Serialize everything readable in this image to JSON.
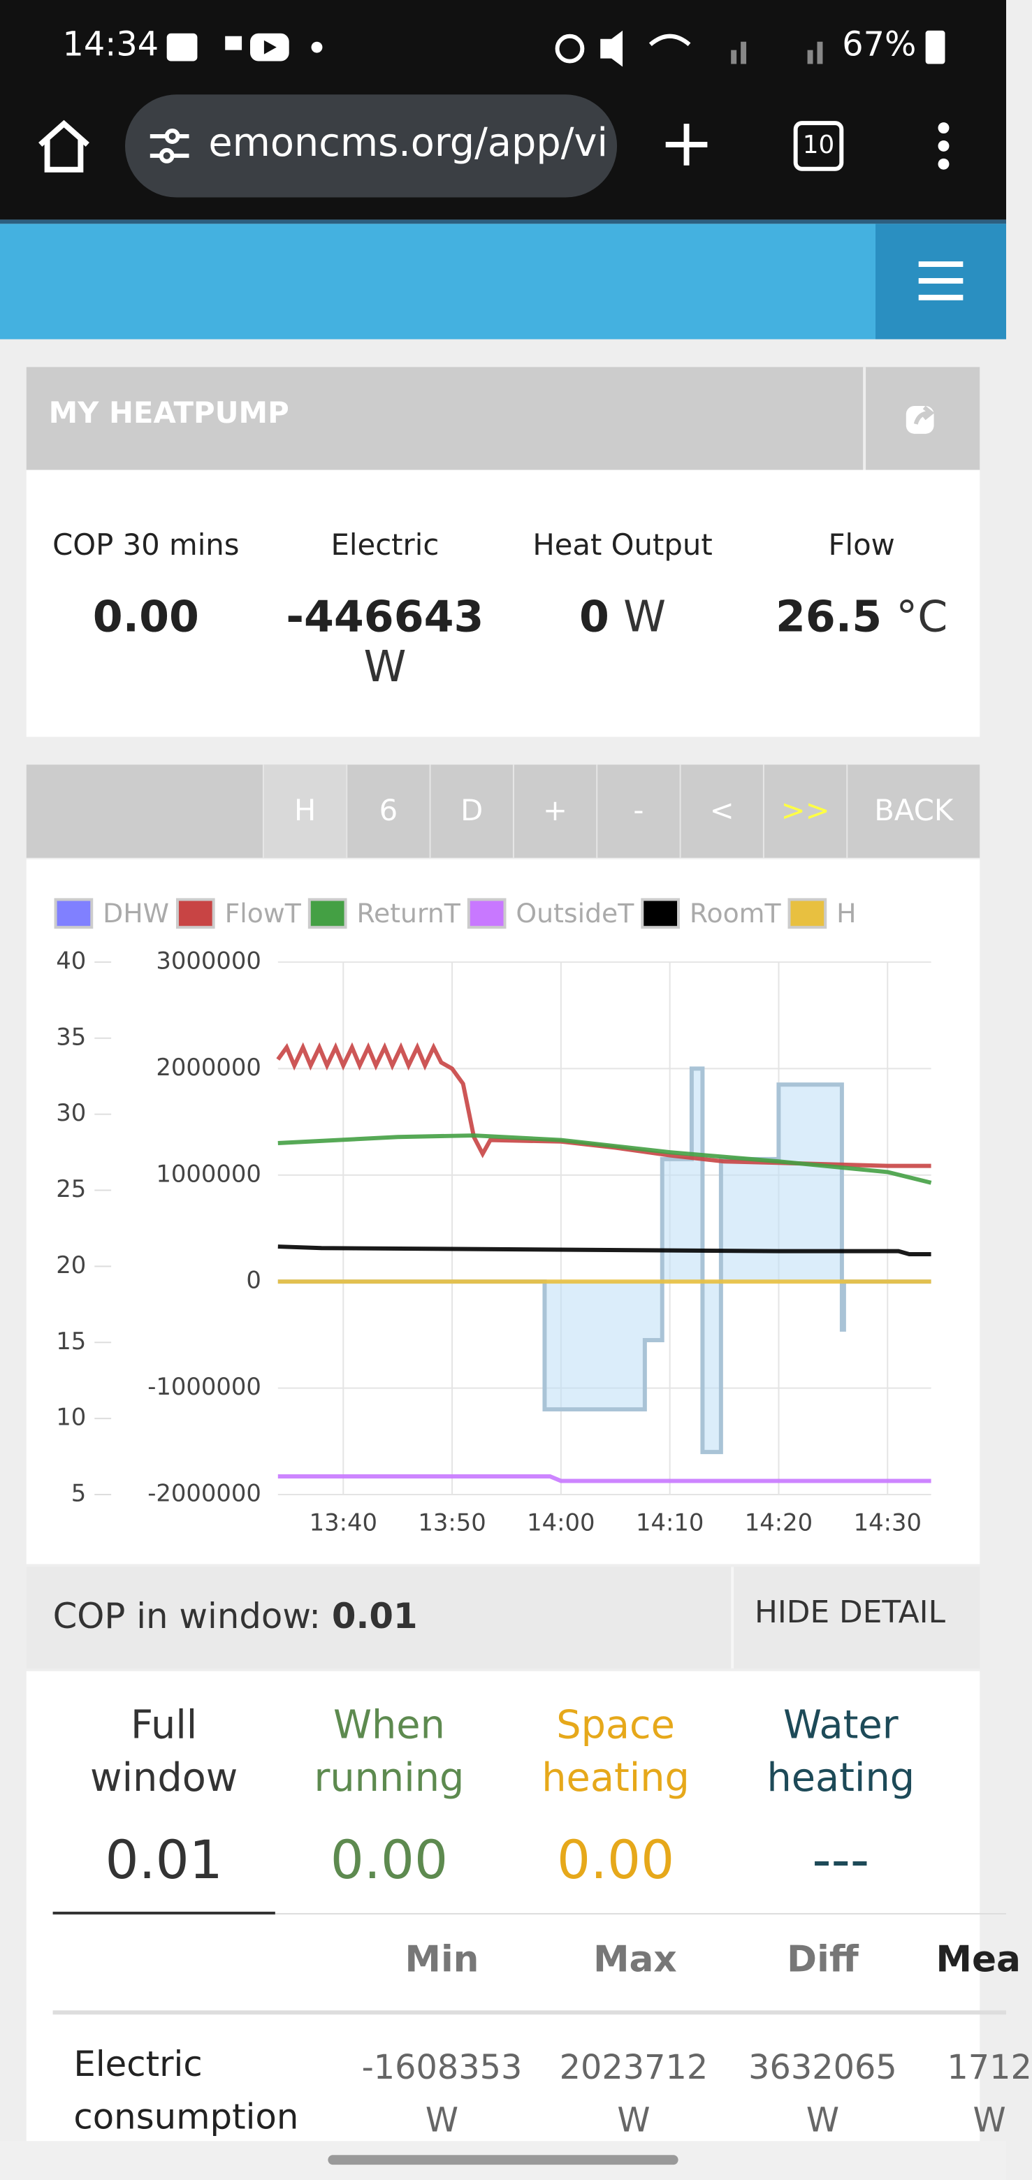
{
  "status_bar": {
    "time": "14:34",
    "battery": "67%"
  },
  "browser": {
    "url": "emoncms.org/app/vi",
    "tab_count": "10"
  },
  "app": {
    "title": "MY HEATPUMP"
  },
  "stats": [
    {
      "label": "COP 30 mins",
      "value": "0.00"
    },
    {
      "label": "Electric",
      "value": "-446643",
      "unit": "W"
    },
    {
      "label": "Heat Output",
      "value": "0",
      "unit": "W"
    },
    {
      "label": "Flow",
      "value": "26.5",
      "unit": "°C"
    }
  ],
  "buttons": [
    "H",
    "6",
    "D",
    "+",
    "-",
    "<",
    ">>",
    "BACK"
  ],
  "chart_data": {
    "type": "line",
    "xlim": [
      814,
      874
    ],
    "xticks": [
      {
        "value": 820,
        "label": "13:40"
      },
      {
        "value": 830,
        "label": "13:50"
      },
      {
        "value": 840,
        "label": "14:00"
      },
      {
        "value": 850,
        "label": "14:10"
      },
      {
        "value": 860,
        "label": "14:20"
      },
      {
        "value": 870,
        "label": "14:30"
      }
    ],
    "ylim": [
      5,
      40
    ],
    "yticks": [
      5,
      10,
      15,
      20,
      25,
      30,
      35,
      40
    ],
    "y2lim": [
      -2000000,
      3000000
    ],
    "y2ticks": [
      -2000000,
      -1000000,
      0,
      1000000,
      2000000,
      3000000
    ],
    "grid": true,
    "legend": "top",
    "series": [
      {
        "name": "DHW",
        "color": "#8080ff",
        "x": [],
        "values": []
      },
      {
        "name": "FlowT",
        "color": "#c84444",
        "x": [
          814,
          814.8,
          815.5,
          816.3,
          817,
          817.8,
          818.5,
          819.3,
          820,
          820.8,
          821.5,
          822.3,
          823,
          823.8,
          824.5,
          825.3,
          826,
          826.8,
          827.5,
          828.3,
          829,
          830,
          831,
          832,
          832.8,
          833.5,
          840,
          845,
          850,
          855,
          860,
          865,
          870,
          874
        ],
        "values": [
          33.6,
          34.4,
          33.2,
          34.4,
          33.2,
          34.4,
          33.2,
          34.4,
          33.2,
          34.4,
          33.2,
          34.4,
          33.2,
          34.4,
          33.2,
          34.4,
          33.2,
          34.4,
          33.2,
          34.4,
          33.4,
          33.0,
          32.0,
          28.5,
          27.4,
          28.3,
          28.2,
          27.8,
          27.3,
          26.9,
          26.8,
          26.7,
          26.6,
          26.6
        ]
      },
      {
        "name": "ReturnT",
        "color": "#44a044",
        "x": [
          814,
          825,
          832,
          840,
          850,
          860,
          870,
          874
        ],
        "values": [
          28.1,
          28.5,
          28.6,
          28.3,
          27.5,
          26.9,
          26.2,
          25.5
        ]
      },
      {
        "name": "OutsideT",
        "color": "#c878ff",
        "x": [
          814,
          839,
          840,
          874
        ],
        "values": [
          6.2,
          6.2,
          5.9,
          5.9
        ]
      },
      {
        "name": "RoomT",
        "color": "#000000",
        "x": [
          814,
          818,
          860,
          871,
          872,
          874
        ],
        "values": [
          21.3,
          21.2,
          21.0,
          21.0,
          20.8,
          20.8
        ]
      },
      {
        "name": "H",
        "color": "#e8c040",
        "axis": "y2",
        "x": [
          814,
          874
        ],
        "values": [
          0,
          0
        ]
      },
      {
        "type": "area",
        "color": "#a9c3d6",
        "axis": "y2",
        "x": [
          814,
          838.5,
          838.5,
          847.7,
          847.7,
          849.3,
          849.3,
          852,
          852,
          853,
          853,
          854.7,
          854.7,
          860,
          860,
          865.8,
          865.8,
          866,
          866,
          874
        ],
        "values": [
          0,
          0,
          -1200000,
          -1200000,
          -550000,
          -550000,
          1150000,
          1150000,
          2000000,
          2000000,
          -1600000,
          -1600000,
          1150000,
          1150000,
          1850000,
          1850000,
          -450000,
          -450000,
          0,
          0
        ]
      }
    ]
  },
  "cop_window": {
    "label": "COP in window:",
    "value": "0.01",
    "button": "HIDE DETAIL"
  },
  "tabs": [
    {
      "title": "Full window",
      "value": "0.01"
    },
    {
      "title": "When running",
      "value": "0.00"
    },
    {
      "title": "Space heating",
      "value": "0.00"
    },
    {
      "title": "Water heating",
      "value": "---"
    }
  ],
  "table": {
    "headers": [
      "Min",
      "Max",
      "Diff",
      "Mea"
    ],
    "rows": [
      {
        "label": "Electric consumption",
        "values": [
          "-1608353",
          "2023712",
          "3632065",
          "1712"
        ],
        "unit": "W"
      }
    ]
  }
}
